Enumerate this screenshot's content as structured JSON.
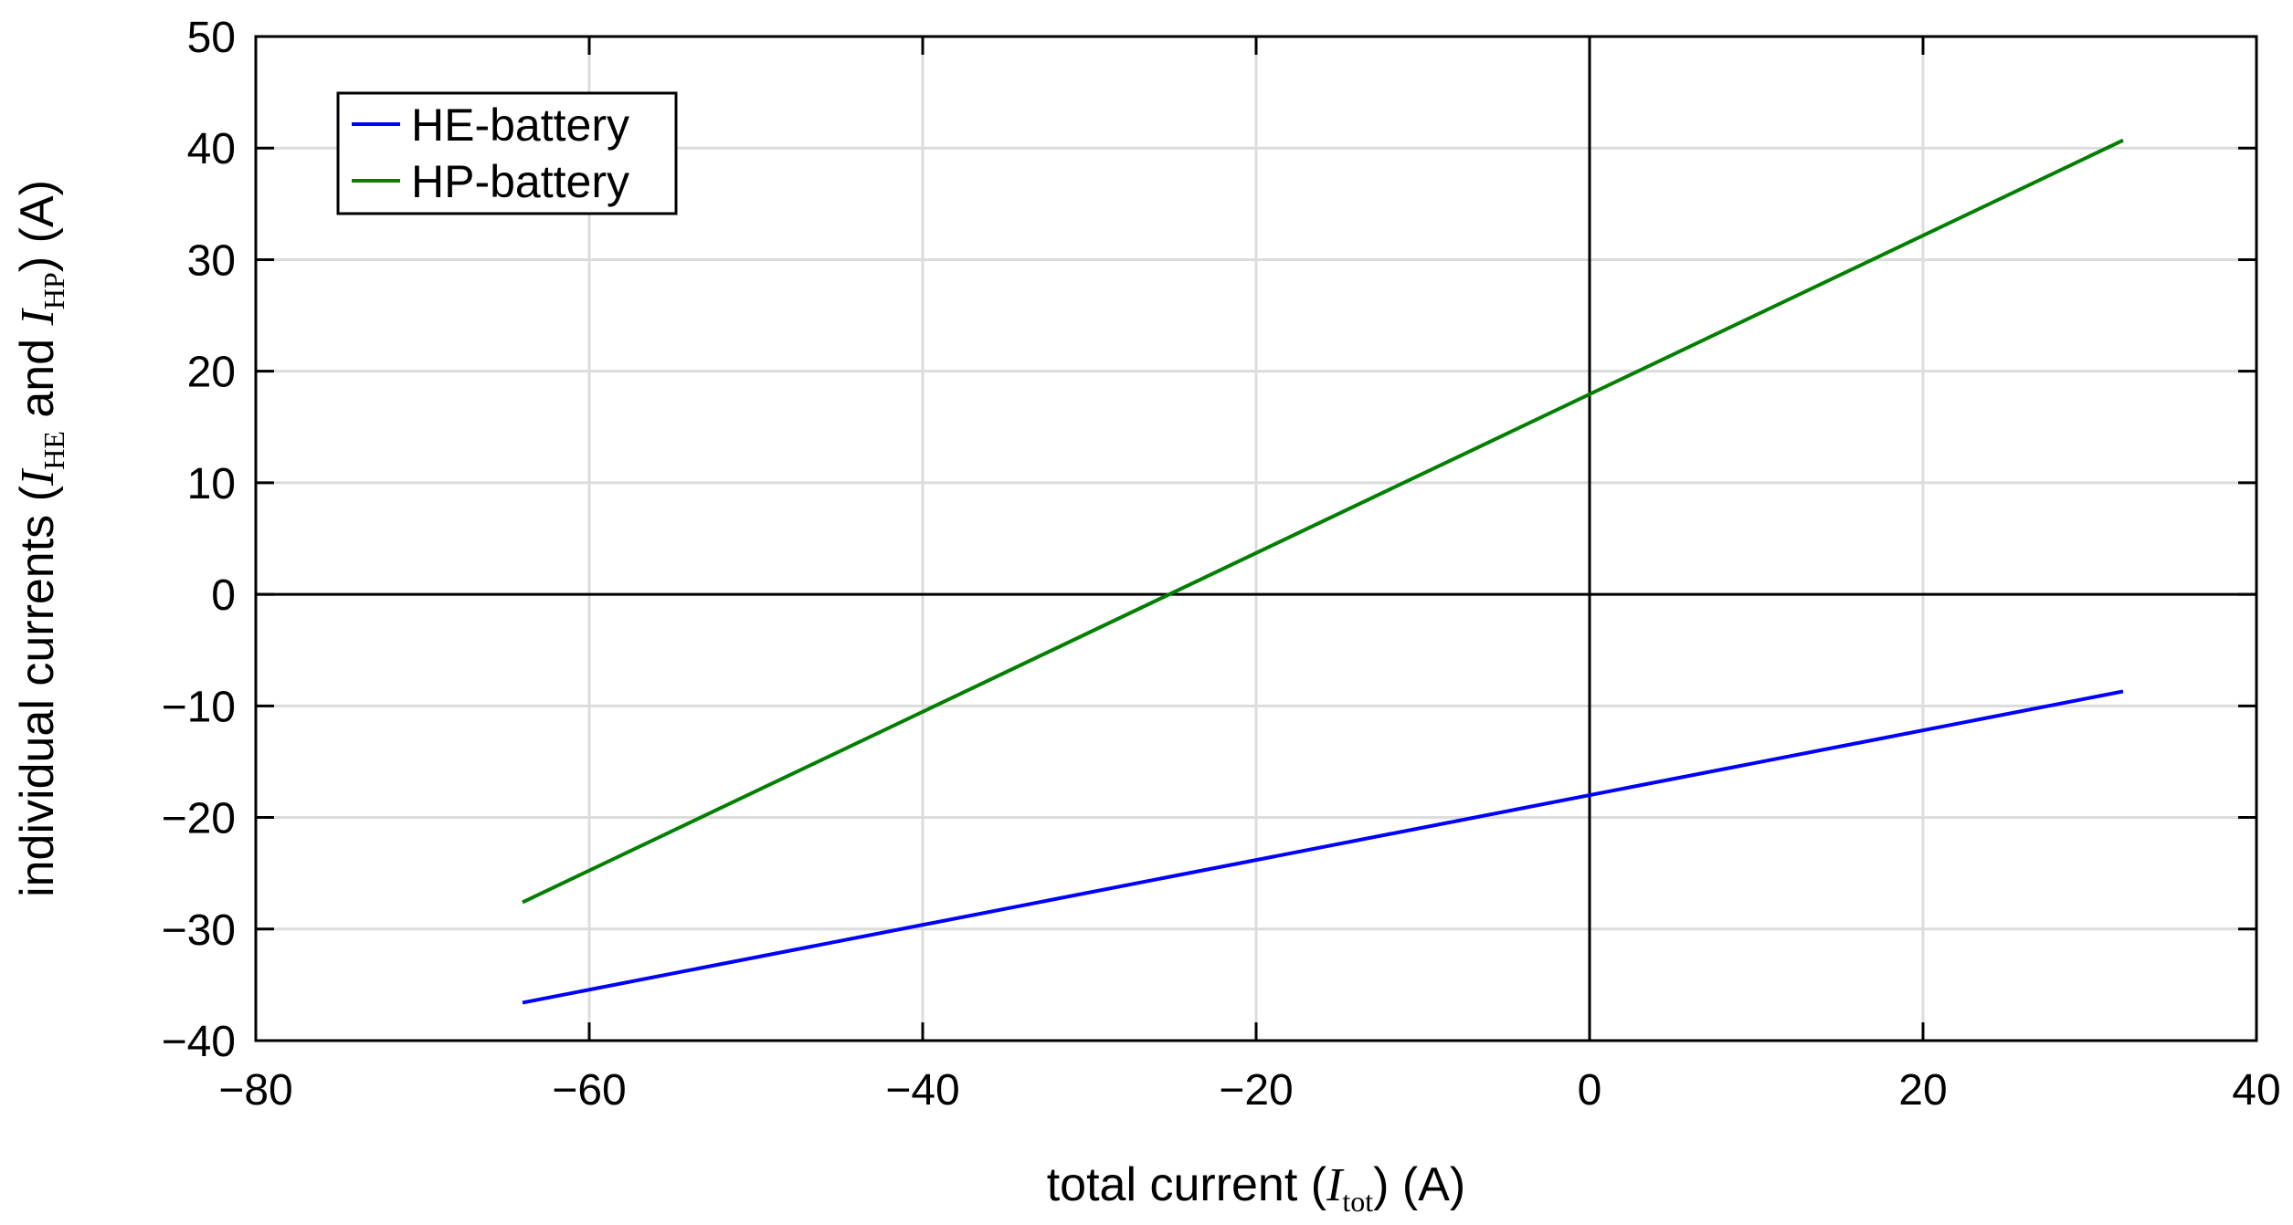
{
  "chart_data": {
    "type": "line",
    "xlabel": {
      "prefix": "total current (",
      "symbol": "I",
      "subscript": "tot",
      "suffix": ") (A)"
    },
    "ylabel": {
      "prefix": "individual currents (",
      "symbol1": "I",
      "subscript1": "HE",
      "middle": " and ",
      "symbol2": "I",
      "subscript2": "HP",
      "suffix": ") (A)"
    },
    "xlim": [
      -80,
      40
    ],
    "ylim": [
      -40,
      50
    ],
    "xticks": [
      -80,
      -60,
      -40,
      -20,
      0,
      20,
      40
    ],
    "yticks": [
      -40,
      -30,
      -20,
      -10,
      0,
      10,
      20,
      30,
      40,
      50
    ],
    "grid": true,
    "zero_lines": true,
    "legend_position": "top-left",
    "series": [
      {
        "name": "HE-battery",
        "color": "#0000ff",
        "x": [
          -64,
          32
        ],
        "y": [
          -36.6,
          -8.7
        ]
      },
      {
        "name": "HP-battery",
        "color": "#007f00",
        "x": [
          -64,
          32
        ],
        "y": [
          -27.6,
          40.7
        ]
      }
    ]
  }
}
